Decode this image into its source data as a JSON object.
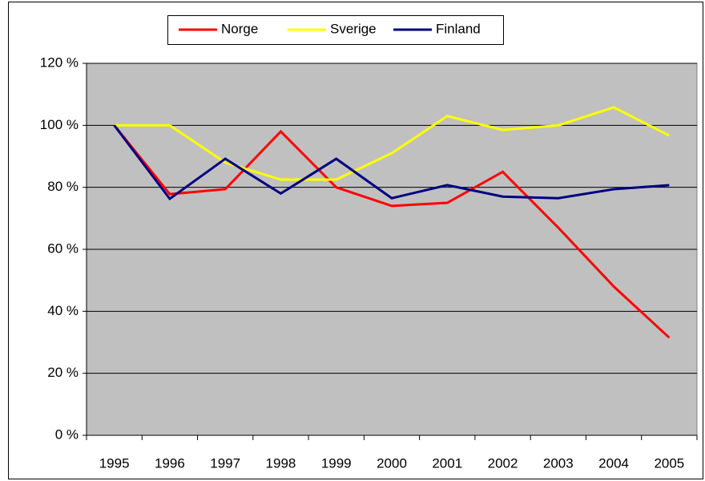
{
  "chart_data": {
    "type": "line",
    "categories": [
      "1995",
      "1996",
      "1997",
      "1998",
      "1999",
      "2000",
      "2001",
      "2002",
      "2003",
      "2004",
      "2005"
    ],
    "series": [
      {
        "name": "Norge",
        "color": "#ff0000",
        "values": [
          100,
          77.8,
          79.4,
          98,
          80,
          74,
          75,
          85,
          67,
          48,
          31.5
        ]
      },
      {
        "name": "Sverige",
        "color": "#ffff00",
        "values": [
          100,
          100,
          88,
          82.5,
          82.5,
          91,
          103,
          98.5,
          100,
          105.8,
          96.7
        ]
      },
      {
        "name": "Finland",
        "color": "#000080",
        "values": [
          100,
          76.3,
          89.2,
          78,
          89.2,
          76.5,
          80.7,
          77,
          76.5,
          79.4,
          80.7
        ]
      }
    ],
    "ylim": [
      0,
      120
    ],
    "yticks": [
      {
        "value": 0,
        "label": "0 %"
      },
      {
        "value": 20,
        "label": "20 %"
      },
      {
        "value": 40,
        "label": "40 %"
      },
      {
        "value": 60,
        "label": "60 %"
      },
      {
        "value": 80,
        "label": "80 %"
      },
      {
        "value": 100,
        "label": "100 %"
      },
      {
        "value": 120,
        "label": "120 %"
      }
    ],
    "grid": true,
    "legend": "top",
    "plot_background": "#c0c0c0"
  }
}
